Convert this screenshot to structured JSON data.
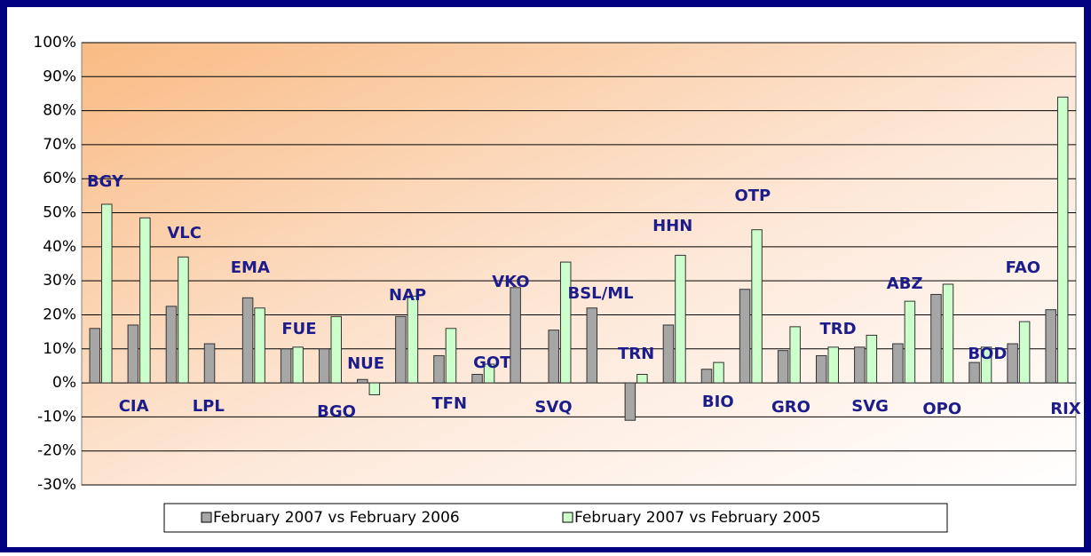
{
  "chart_data": {
    "type": "bar",
    "categories": [
      "BGY",
      "CIA",
      "VLC",
      "LPL",
      "EMA",
      "FUE",
      "BGO",
      "NUE",
      "NAP",
      "TFN",
      "GOT",
      "VKO",
      "SVQ",
      "BSL/ML",
      "TRN",
      "HHN",
      "BIO",
      "OTP",
      "GRO",
      "TRD",
      "SVG",
      "ABZ",
      "OPO",
      "BOD",
      "FAO",
      "RIX"
    ],
    "series": [
      {
        "name": "February 2007 vs February 2006",
        "color": "#a6a6a6",
        "values": [
          16,
          17,
          22.5,
          11.5,
          25,
          10,
          10,
          1,
          19.5,
          8,
          2.5,
          28,
          15.5,
          22,
          -11,
          17,
          4,
          27.5,
          9.5,
          8,
          10.5,
          11.5,
          26,
          6,
          11.5,
          21.5
        ]
      },
      {
        "name": "February 2007 vs February 2005",
        "color": "#ccffcc",
        "values": [
          52.5,
          48.5,
          37,
          null,
          22,
          10.5,
          19.5,
          -3.5,
          25.5,
          16,
          5.5,
          null,
          35.5,
          null,
          2.5,
          37.5,
          6,
          45,
          16.5,
          10.5,
          14,
          24,
          29,
          10.5,
          18,
          84
        ]
      }
    ],
    "ylim": [
      -30,
      100
    ],
    "yticks": [
      {
        "value": -30,
        "label": "-30%"
      },
      {
        "value": -20,
        "label": "-20%"
      },
      {
        "value": -10,
        "label": "-10%"
      },
      {
        "value": 0,
        "label": "0%"
      },
      {
        "value": 10,
        "label": "10%"
      },
      {
        "value": 20,
        "label": "20%"
      },
      {
        "value": 30,
        "label": "30%"
      },
      {
        "value": 40,
        "label": "40%"
      },
      {
        "value": 50,
        "label": "50%"
      },
      {
        "value": 60,
        "label": "60%"
      },
      {
        "value": 70,
        "label": "70%"
      },
      {
        "value": 80,
        "label": "80%"
      },
      {
        "value": 90,
        "label": "90%"
      },
      {
        "value": 100,
        "label": "100%"
      }
    ],
    "grid": true,
    "legend": "bottom"
  }
}
